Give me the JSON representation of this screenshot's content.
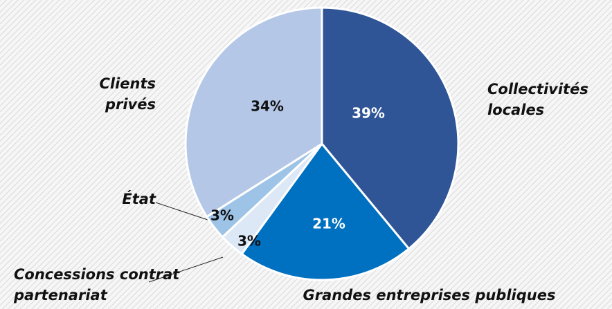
{
  "chart_data": {
    "type": "pie",
    "categories": [
      "Collectivités locales",
      "Grandes entreprises publiques",
      "Concessions contrat partenariat",
      "État",
      "Clients privés"
    ],
    "values": [
      39,
      21,
      3,
      3,
      34
    ],
    "value_labels": [
      "39%",
      "21%",
      "3%",
      "3%",
      "34%"
    ],
    "colors": [
      "#2f5597",
      "#0070c0",
      "#dde8f6",
      "#9dc3e6",
      "#b4c7e7"
    ]
  }
}
